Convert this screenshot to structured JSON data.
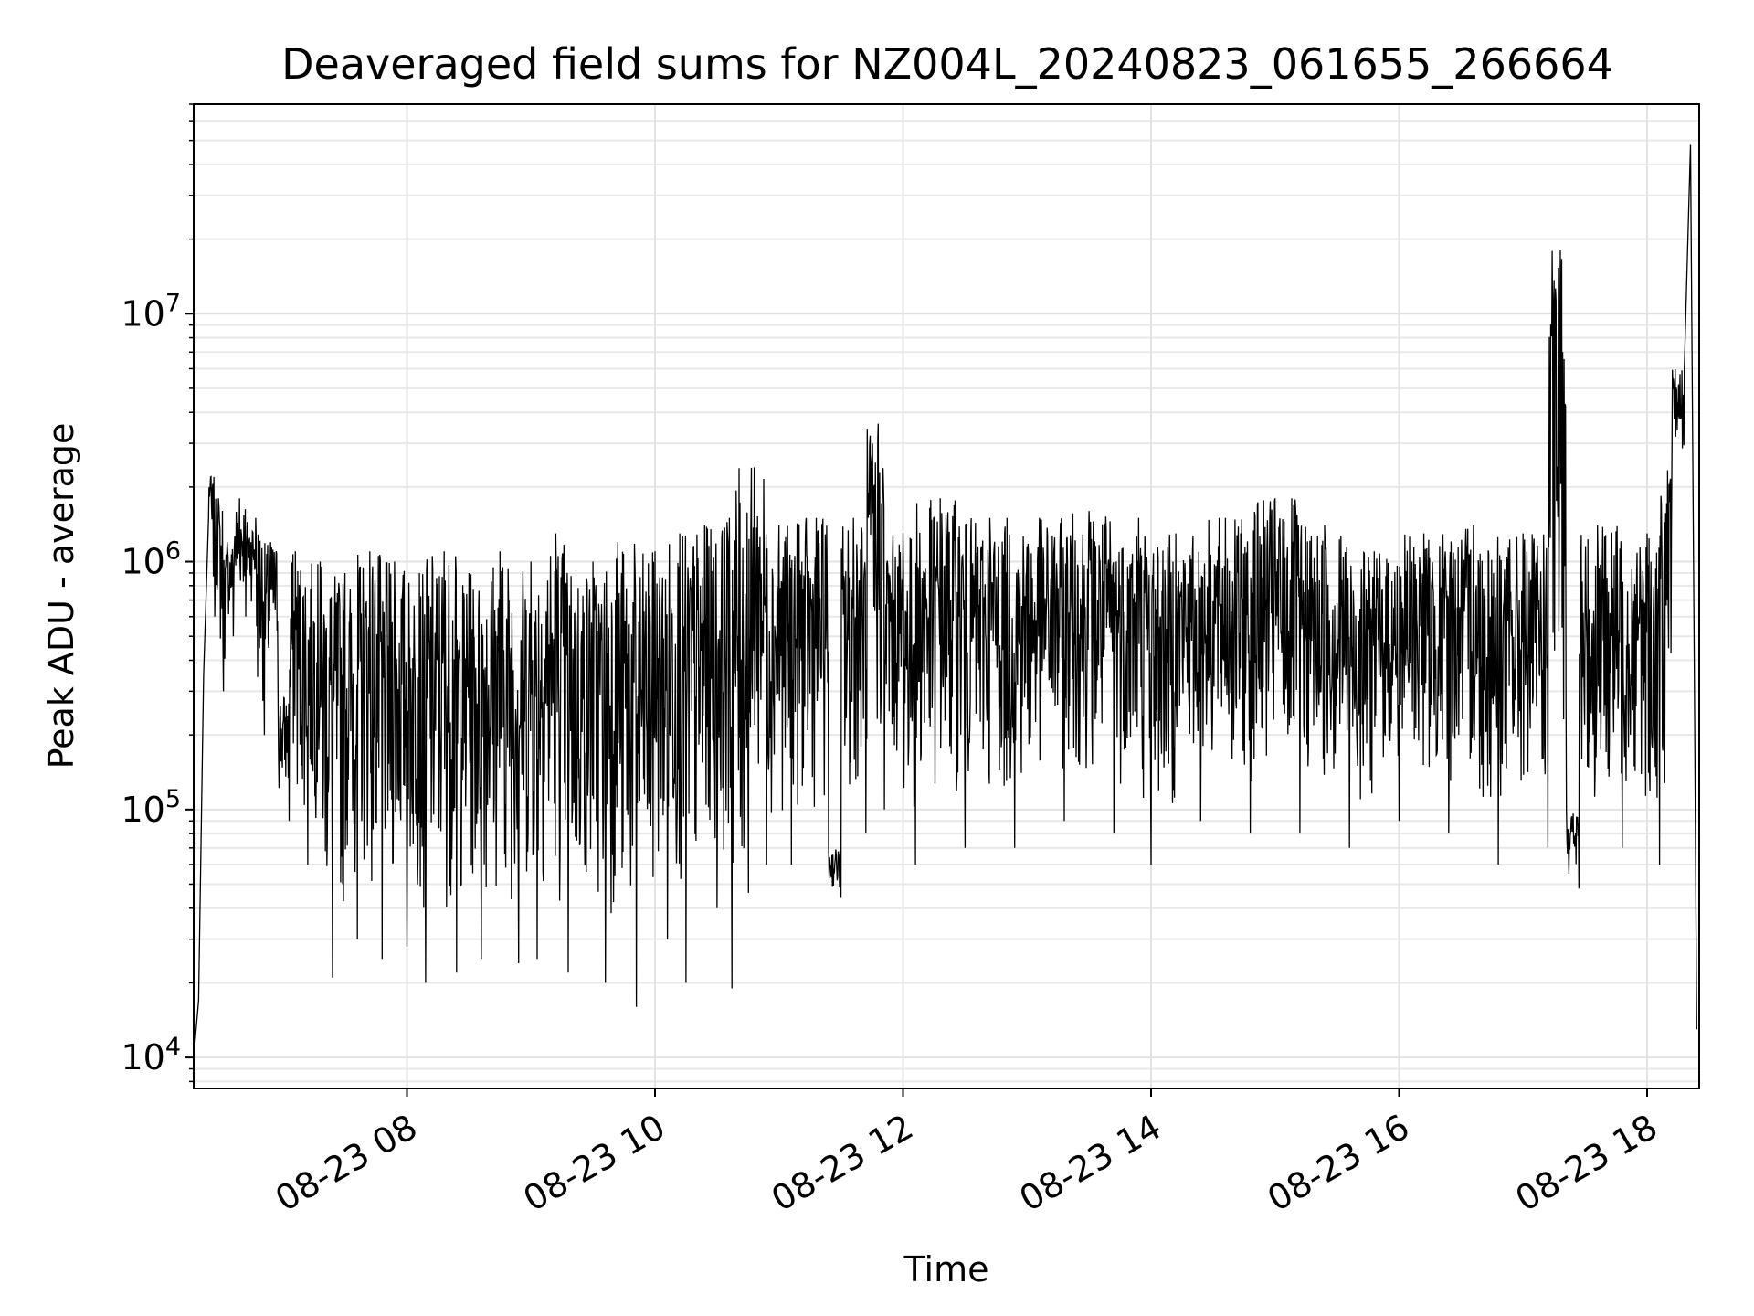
{
  "chart_data": {
    "type": "line",
    "title": "Deaveraged field sums for NZ004L_20240823_061655_266664",
    "xlabel": "Time",
    "ylabel": "Peak ADU - average",
    "x_tick_labels": [
      "08-23 08",
      "08-23 10",
      "08-23 12",
      "08-23 14",
      "08-23 16",
      "08-23 18"
    ],
    "x_tick_hours": [
      8,
      10,
      12,
      14,
      16,
      18
    ],
    "xlim_hours": [
      6.28,
      18.42
    ],
    "y_scale": "log",
    "ylim": [
      7500,
      70000000
    ],
    "y_ticks": [
      {
        "value": 10000,
        "base": "10",
        "exp": "4"
      },
      {
        "value": 100000,
        "base": "10",
        "exp": "5"
      },
      {
        "value": 1000000,
        "base": "10",
        "exp": "6"
      },
      {
        "value": 10000000,
        "base": "10",
        "exp": "7"
      }
    ],
    "grid": true,
    "legend": false,
    "line_color": "#000000",
    "series": [
      {
        "points": [
          [
            6.29,
            11500
          ],
          [
            6.32,
            17000
          ],
          [
            6.36,
            350000
          ],
          [
            6.4,
            1500000
          ],
          [
            6.42,
            2200000
          ],
          [
            6.45,
            600000
          ],
          [
            6.48,
            1800000
          ],
          [
            6.52,
            300000
          ],
          [
            6.55,
            1200000
          ],
          [
            6.6,
            500000
          ],
          [
            6.65,
            1800000
          ],
          [
            6.7,
            600000
          ],
          [
            6.78,
            1500000
          ],
          [
            6.85,
            200000
          ],
          [
            6.9,
            1200000
          ],
          [
            6.96,
            300000
          ],
          [
            7.05,
            90000
          ],
          [
            7.1,
            1100000
          ],
          [
            7.2,
            60000
          ],
          [
            7.3,
            1000000
          ],
          [
            7.4,
            21000
          ],
          [
            7.5,
            900000
          ],
          [
            7.6,
            30000
          ],
          [
            7.7,
            1100000
          ],
          [
            7.8,
            25000
          ],
          [
            7.9,
            1000000
          ],
          [
            8.0,
            28000
          ],
          [
            8.1,
            900000
          ],
          [
            8.15,
            20000
          ],
          [
            8.3,
            1100000
          ],
          [
            8.4,
            22000
          ],
          [
            8.5,
            900000
          ],
          [
            8.6,
            25000
          ],
          [
            8.75,
            1100000
          ],
          [
            8.9,
            24000
          ],
          [
            9.0,
            1000000
          ],
          [
            9.05,
            25000
          ],
          [
            9.2,
            1300000
          ],
          [
            9.3,
            22000
          ],
          [
            9.5,
            1000000
          ],
          [
            9.6,
            20000
          ],
          [
            9.7,
            1200000
          ],
          [
            9.85,
            16000
          ],
          [
            10.0,
            1100000
          ],
          [
            10.1,
            30000
          ],
          [
            10.2,
            1300000
          ],
          [
            10.25,
            20000
          ],
          [
            10.4,
            1400000
          ],
          [
            10.5,
            40000
          ],
          [
            10.6,
            1500000
          ],
          [
            10.62,
            19000
          ],
          [
            10.8,
            2400000
          ],
          [
            10.9,
            60000
          ],
          [
            11.0,
            1400000
          ],
          [
            11.1,
            60000
          ],
          [
            11.3,
            1500000
          ],
          [
            11.4,
            70000
          ],
          [
            11.5,
            44000
          ],
          [
            11.6,
            1500000
          ],
          [
            11.7,
            80000
          ],
          [
            11.8,
            3600000
          ],
          [
            11.85,
            100000
          ],
          [
            12.0,
            1300000
          ],
          [
            12.1,
            60000
          ],
          [
            12.3,
            1800000
          ],
          [
            12.5,
            70000
          ],
          [
            12.7,
            1500000
          ],
          [
            12.9,
            70000
          ],
          [
            13.1,
            1500000
          ],
          [
            13.3,
            90000
          ],
          [
            13.5,
            1600000
          ],
          [
            13.7,
            80000
          ],
          [
            13.9,
            1500000
          ],
          [
            14.0,
            60000
          ],
          [
            14.2,
            1300000
          ],
          [
            14.4,
            90000
          ],
          [
            14.6,
            1500000
          ],
          [
            14.8,
            80000
          ],
          [
            15.0,
            1800000
          ],
          [
            15.2,
            80000
          ],
          [
            15.4,
            1400000
          ],
          [
            15.6,
            70000
          ],
          [
            15.8,
            1100000
          ],
          [
            16.0,
            90000
          ],
          [
            16.2,
            1300000
          ],
          [
            16.4,
            80000
          ],
          [
            16.6,
            1400000
          ],
          [
            16.8,
            60000
          ],
          [
            17.0,
            1300000
          ],
          [
            17.2,
            70000
          ],
          [
            17.3,
            18000000
          ],
          [
            17.35,
            100000
          ],
          [
            17.45,
            48000
          ],
          [
            17.6,
            1400000
          ],
          [
            17.8,
            70000
          ],
          [
            18.0,
            1300000
          ],
          [
            18.1,
            60000
          ],
          [
            18.2,
            2500000
          ],
          [
            18.3,
            6000000
          ],
          [
            18.35,
            48000000
          ],
          [
            18.38,
            400000
          ],
          [
            18.4,
            13000
          ]
        ]
      }
    ]
  }
}
